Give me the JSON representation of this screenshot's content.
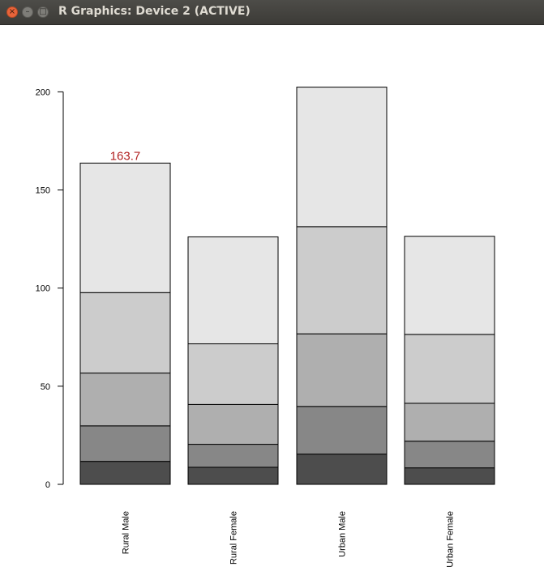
{
  "window": {
    "title": "R Graphics: Device 2 (ACTIVE)",
    "close_glyph": "×",
    "minimize_glyph": "–",
    "maximize_glyph": "□"
  },
  "chart_data": {
    "type": "bar",
    "stacked": true,
    "categories": [
      "Rural Male",
      "Rural Female",
      "Urban Male",
      "Urban Female"
    ],
    "series": [
      {
        "color": "#4d4d4d",
        "values": [
          11.7,
          8.7,
          15.4,
          8.4
        ]
      },
      {
        "color": "#878787",
        "values": [
          18.1,
          11.7,
          24.3,
          13.6
        ]
      },
      {
        "color": "#afafaf",
        "values": [
          26.9,
          20.3,
          37.0,
          19.3
        ]
      },
      {
        "color": "#cccccc",
        "values": [
          41.0,
          30.9,
          54.6,
          35.1
        ]
      },
      {
        "color": "#e6e6e6",
        "values": [
          66.0,
          54.5,
          71.1,
          50.0
        ]
      }
    ],
    "yticks": [
      0,
      50,
      100,
      150,
      200
    ],
    "ylim": [
      0,
      206
    ],
    "annotation": {
      "category": "Rural Male",
      "text": "163.7",
      "color": "#b22222"
    },
    "grid": false
  }
}
